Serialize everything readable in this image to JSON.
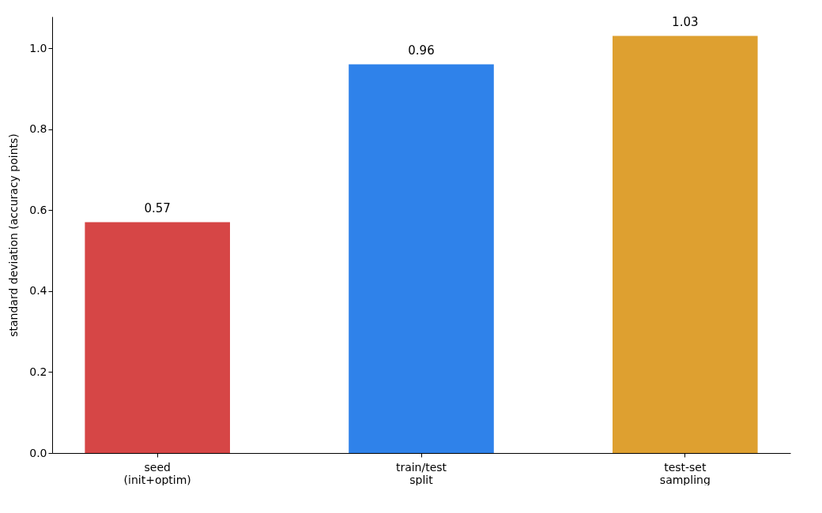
{
  "chart_data": {
    "type": "bar",
    "ylabel": "standard deviation (accuracy points)",
    "categories": [
      "seed\n(init+optim)",
      "train/test\nsplit",
      "test-set\nsampling"
    ],
    "values": [
      0.57,
      0.96,
      1.03
    ],
    "colors": [
      "#d64646",
      "#2f82ea",
      "#dea030"
    ],
    "ylim": [
      0,
      1.078
    ],
    "yticks": [
      {
        "value": 0,
        "label": "0.0"
      },
      {
        "value": 0.2,
        "label": "0.2"
      },
      {
        "value": 0.4,
        "label": "0.4"
      },
      {
        "value": 0.6,
        "label": "0.6"
      },
      {
        "value": 0.8,
        "label": "0.8"
      },
      {
        "value": 1.0,
        "label": "1.0"
      }
    ],
    "grid": false,
    "legend": false,
    "data_labels": true
  }
}
